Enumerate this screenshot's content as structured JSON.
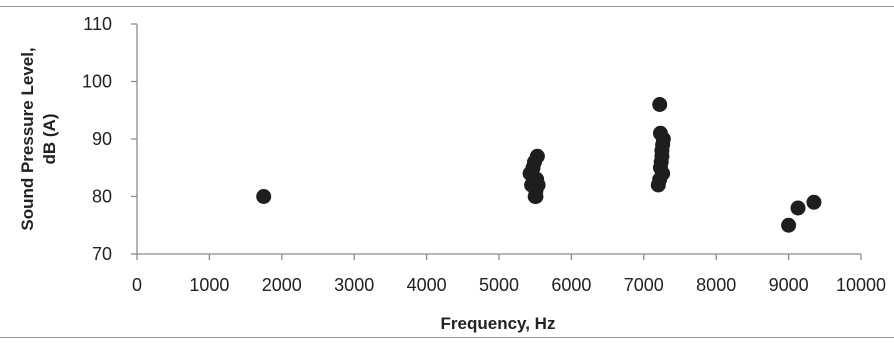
{
  "chart_data": {
    "type": "scatter",
    "title": "",
    "xlabel": "Frequency, Hz",
    "ylabel": "Sound Pressure Level, dB (A)",
    "ylabel_lines": [
      "Sound Pressure Level,",
      "dB (A)"
    ],
    "xlim": [
      0,
      10000
    ],
    "ylim": [
      70,
      110
    ],
    "xticks": [
      0,
      1000,
      2000,
      3000,
      4000,
      5000,
      6000,
      7000,
      8000,
      9000,
      10000
    ],
    "yticks": [
      70,
      80,
      90,
      100,
      110
    ],
    "grid": false,
    "legend": "none",
    "marker_color": "#1e1e1e",
    "series": [
      {
        "x": [
          1750,
          5430,
          5450,
          5470,
          5490,
          5500,
          5510,
          5520,
          5530,
          5540,
          5510,
          7200,
          7220,
          7230,
          7240,
          7250,
          7260,
          7270,
          7230,
          7250,
          7220,
          7260,
          9000,
          9130,
          9350
        ],
        "y": [
          80,
          84,
          82,
          85,
          86,
          80,
          81,
          83,
          87,
          82,
          80,
          82,
          83,
          85,
          86,
          88,
          89,
          90,
          91,
          87,
          96,
          84,
          75,
          78,
          79
        ]
      }
    ]
  }
}
